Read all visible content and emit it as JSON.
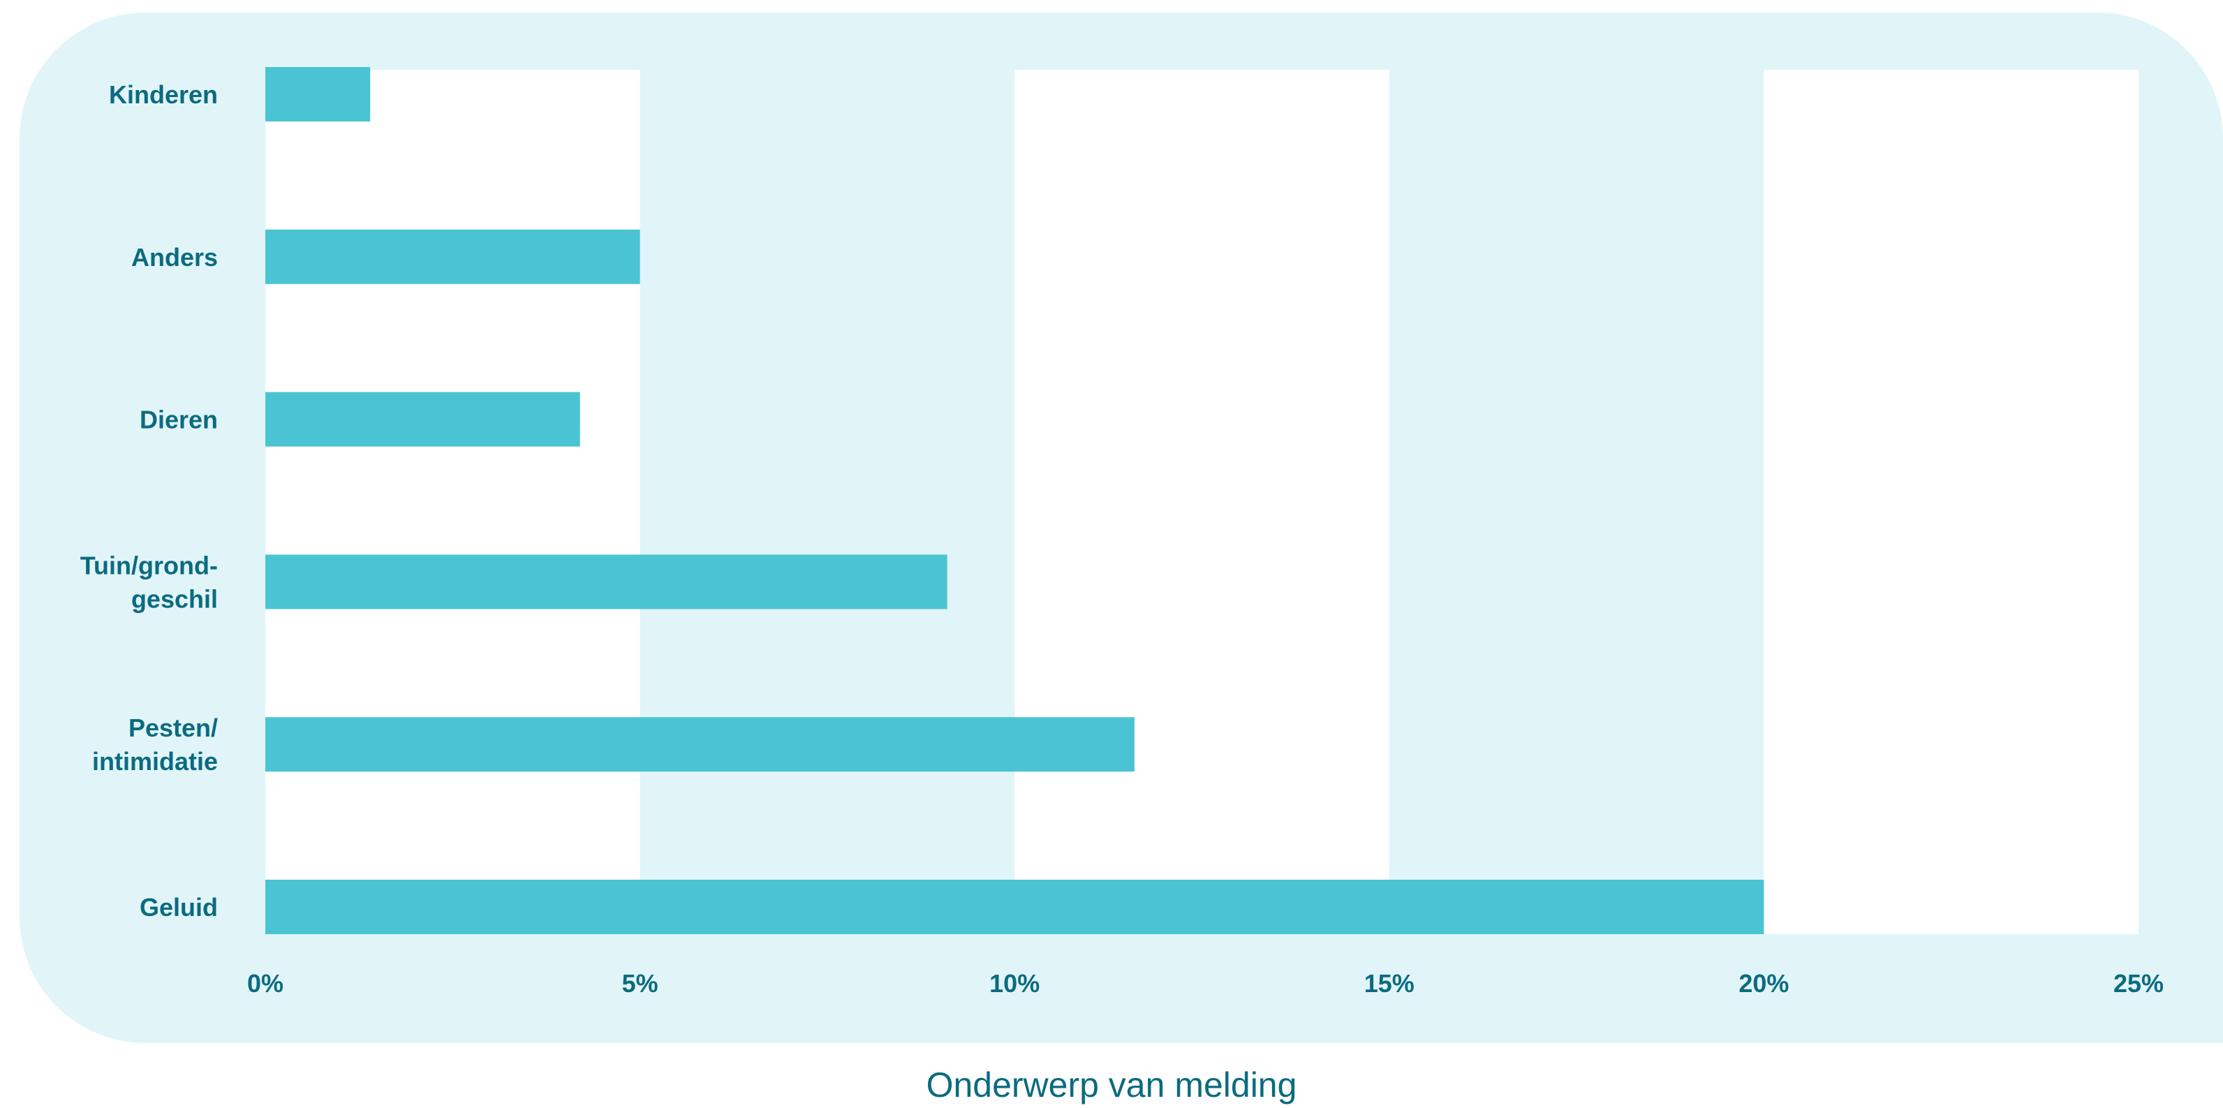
{
  "chart_data": {
    "type": "bar",
    "orientation": "horizontal",
    "categories": [
      "Kinderen",
      "Anders",
      "Dieren",
      "Tuin/grond-\ngeschil",
      "Pesten/\nintimidatie",
      "Geluid"
    ],
    "values": [
      1.4,
      5.0,
      4.2,
      9.1,
      11.6,
      20.0
    ],
    "value_unit": "%",
    "xlim": [
      0,
      25
    ],
    "xticks": [
      0,
      5,
      10,
      15,
      20,
      25
    ],
    "xtick_labels": [
      "0%",
      "5%",
      "10%",
      "15%",
      "20%",
      "25%"
    ],
    "xlabel": "Onderwerp van melding",
    "ylabel": "",
    "title": "",
    "grid": "alternating vertical bands",
    "legend": "none",
    "colors": {
      "bar": "#4ac4d3",
      "band_light": "#ffffff",
      "band_dark": "#e1f5f9",
      "panel": "#e1f5f9",
      "text": "#0b6b80"
    }
  }
}
